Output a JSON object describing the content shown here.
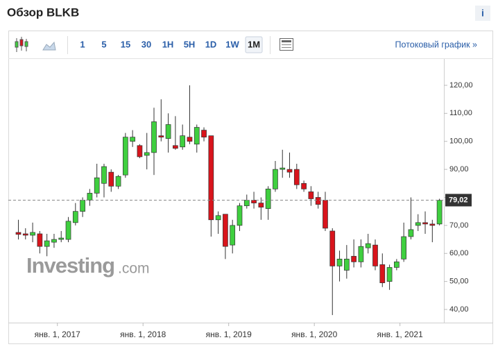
{
  "header": {
    "title": "Обзор BLKB",
    "info": "i"
  },
  "toolbar": {
    "intervals": [
      "1",
      "5",
      "15",
      "30",
      "1H",
      "5H",
      "1D",
      "1W",
      "1M"
    ],
    "active": 8,
    "stream_link": "Потоковый график »"
  },
  "watermark": {
    "brand": "Investing",
    "suffix": ".com"
  },
  "chart_data": {
    "type": "candlestick",
    "categories": [
      null,
      null,
      null,
      null,
      null,
      null,
      "янв. 1, 2017",
      null,
      null,
      null,
      null,
      null,
      null,
      null,
      null,
      null,
      null,
      null,
      "янв. 1, 2018",
      null,
      null,
      null,
      null,
      null,
      null,
      null,
      null,
      null,
      null,
      null,
      "янв. 1, 2019",
      null,
      null,
      null,
      null,
      null,
      null,
      null,
      null,
      null,
      null,
      null,
      "янв. 1, 2020",
      null,
      null,
      null,
      null,
      null,
      null,
      null,
      null,
      null,
      null,
      null,
      "янв. 1, 2021",
      null,
      null,
      null,
      null,
      null
    ],
    "open": [
      67.5,
      67,
      66.5,
      67,
      62.5,
      64,
      65,
      65,
      71,
      75,
      79,
      81.5,
      85,
      89,
      84,
      88,
      100,
      98.5,
      95,
      96,
      102,
      101,
      98.5,
      98,
      101.5,
      99,
      104,
      102,
      72,
      74,
      63,
      70,
      77,
      79,
      78,
      76,
      83,
      90,
      90,
      90,
      85,
      82,
      80,
      79,
      68,
      55.5,
      54,
      59,
      57,
      62,
      63,
      56,
      50,
      55,
      58,
      66,
      70,
      71,
      70.5,
      70.5
    ],
    "high": [
      72,
      69,
      71,
      68,
      67,
      67,
      68,
      73,
      78,
      80,
      83,
      92,
      92,
      90,
      88,
      103,
      104,
      99,
      103,
      112,
      115,
      110,
      109,
      106,
      120,
      106,
      105,
      102,
      75,
      74,
      72,
      78,
      81,
      82,
      80,
      84,
      93,
      97,
      96,
      92,
      86,
      84,
      82,
      82,
      69,
      61,
      63,
      65,
      65,
      67,
      65,
      60,
      56,
      58,
      71,
      80,
      74,
      75,
      72,
      79.5
    ],
    "low": [
      65,
      65,
      64,
      60,
      59,
      62,
      64,
      64,
      70,
      73,
      77,
      80,
      80,
      82,
      83,
      87,
      98,
      94,
      90,
      88,
      100,
      96,
      97,
      97,
      99,
      96,
      100,
      66,
      67,
      58,
      60,
      68,
      76,
      76,
      72,
      72,
      82,
      87,
      87,
      83,
      82,
      77,
      76,
      68,
      38,
      50,
      51,
      55,
      55,
      60,
      54,
      48,
      47,
      54,
      57,
      65,
      68,
      67,
      64,
      70
    ],
    "close": [
      66.8,
      66.5,
      67.5,
      62.5,
      64.5,
      65,
      65.5,
      71.5,
      75,
      79,
      81.5,
      87,
      91,
      84,
      87.5,
      101.5,
      101.5,
      94.5,
      96,
      107,
      101.5,
      106,
      97.5,
      102,
      100,
      105,
      101.5,
      72,
      73.5,
      62.5,
      70,
      77,
      79,
      78,
      76.5,
      83,
      90,
      90.5,
      89,
      84.5,
      83,
      79.5,
      77.5,
      69,
      55.5,
      58,
      58,
      57,
      62.5,
      63.5,
      55.5,
      49.5,
      55,
      57,
      66,
      68.5,
      71,
      70.5,
      70,
      79
    ],
    "up_color": "#3fcf3f",
    "down_color": "#d8141c",
    "ylim": [
      35.3,
      129.4
    ],
    "yticks": [
      {
        "value": 40,
        "label": "40,00"
      },
      {
        "value": 50,
        "label": "50,00"
      },
      {
        "value": 60,
        "label": "60,00"
      },
      {
        "value": 70,
        "label": "70,00"
      },
      {
        "value": 80,
        "label": "80,00"
      },
      {
        "value": 90,
        "label": "90,00"
      },
      {
        "value": 100,
        "label": "100,00"
      },
      {
        "value": 110,
        "label": "110,00"
      },
      {
        "value": 120,
        "label": "120,00"
      }
    ],
    "last_price": {
      "value": 79.02,
      "label": "79,02"
    }
  }
}
